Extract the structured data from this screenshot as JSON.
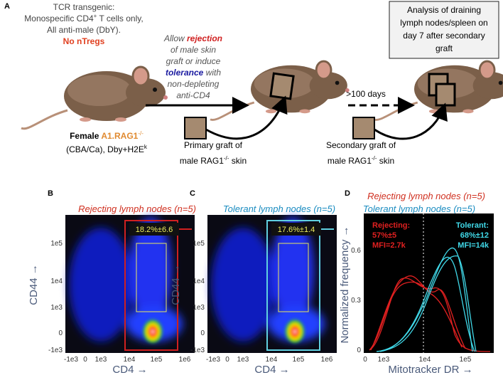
{
  "panel_a": {
    "label": "A",
    "tcr": {
      "line1": "TCR transgenic:",
      "line2_a": "Monospecific CD4",
      "line2_sup": "+",
      "line2_b": " T cells only,",
      "line3": "All anti-male (DbY).",
      "line4": "No nTregs"
    },
    "mouse": {
      "a": "Female ",
      "b": "A1.RAG1",
      "sup": "-/-",
      "line2_a": "(CBA/Ca), Dby+H2E",
      "line2_sup": "k"
    },
    "treatment": [
      [
        "Allow ",
        "rejection"
      ],
      [
        "of male skin"
      ],
      [
        "graft or induce"
      ],
      [
        "tolerance",
        " with"
      ],
      [
        "non-depleting"
      ],
      [
        "anti-CD4"
      ]
    ],
    "primary": {
      "line1": "Primary graft of",
      "line2_a": "male RAG1",
      "sup": "-/-",
      "line2_b": " skin"
    },
    "interval": ">100 days",
    "secondary": {
      "line1": "Secondary graft of",
      "line2_a": "male RAG1",
      "sup": "-/-",
      "line2_b": " skin"
    },
    "analysis": [
      "Analysis of draining",
      "lymph nodes/spleen on",
      "day 7 after secondary",
      "graft"
    ]
  },
  "panel_b": {
    "label": "B",
    "title": "Rejecting lymph nodes (n=5)",
    "gate": "18.2%±6.6",
    "xticks": [
      "-1e3",
      "0",
      "1e3",
      "1e4",
      "1e5",
      "1e6"
    ],
    "yticks": [
      "1e5",
      "1e4",
      "1e3",
      "0",
      "-1e3"
    ],
    "xlabel": "CD4 →",
    "ylabel": "CD44 →"
  },
  "panel_c": {
    "label": "C",
    "title": "Tolerant lymph nodes (n=5)",
    "gate": "17.6%±1.4",
    "xticks": [
      "-1e3",
      "0",
      "1e3",
      "1e4",
      "1e5",
      "1e6"
    ],
    "yticks": [
      "1e5",
      "1e4",
      "1e3",
      "0",
      "-1e3"
    ],
    "xlabel": "CD4 →",
    "ylabel": "CD44 →"
  },
  "panel_d": {
    "label": "D",
    "legend": [
      "Rejecting lymph nodes (n=5)",
      "Tolerant lymph nodes (n=5)"
    ],
    "rejecting": [
      "Rejecting:",
      "57%±5",
      "MFI=2.7k"
    ],
    "tolerant": [
      "Tolerant:",
      "68%±12",
      "MFI=14k"
    ],
    "xticks": [
      "0",
      "1e3",
      "1e4",
      "1e5"
    ],
    "yticks": [
      "0.6",
      "0.3",
      "0"
    ],
    "xlabel": "Mitotracker DR →",
    "ylabel": "Normalized frequency →"
  }
}
